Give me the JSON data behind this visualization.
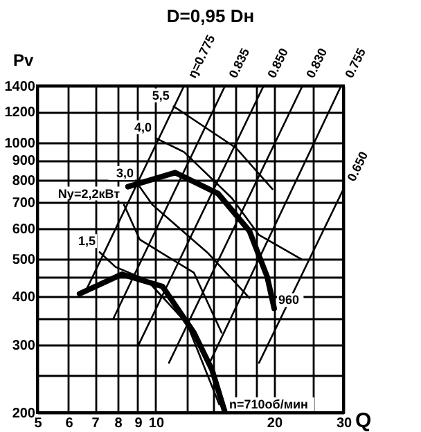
{
  "chart_data": {
    "type": "line",
    "title": "D=0,95 Dн",
    "xlabel": "Q",
    "ylabel": "Pv",
    "log": "xy",
    "grid": true,
    "xlim": [
      5,
      30
    ],
    "ylim": [
      200,
      1400
    ],
    "xticks": [
      5,
      6,
      7,
      8,
      9,
      10,
      {
        "value": 12,
        "label": null
      },
      {
        "value": 14,
        "label": null
      },
      {
        "value": 16,
        "label": null
      },
      {
        "value": 18,
        "label": null
      },
      20,
      {
        "value": 25,
        "label": null
      },
      30
    ],
    "yticks": [
      200,
      {
        "value": 250,
        "label": null
      },
      300,
      {
        "value": 350,
        "label": null
      },
      400,
      {
        "value": 450,
        "label": null
      },
      500,
      600,
      700,
      800,
      900,
      1000,
      1200,
      1400
    ],
    "series": [
      {
        "name": "960",
        "color": "#000000",
        "x": [
          20.0,
          19.2,
          17.3,
          14.4,
          11.2,
          8.5
        ],
        "values": [
          372,
          449,
          590,
          737,
          835,
          768
        ]
      },
      {
        "name": "n=710об/мин",
        "color": "#000000",
        "x": [
          15.0,
          13.9,
          12.5,
          10.4,
          8.2,
          6.4
        ],
        "values": [
          200,
          258,
          322,
          424,
          456,
          406
        ]
      },
      {
        "name": "5,5",
        "color": "#000000",
        "x": [
          11.1,
          16.0,
          19.8
        ],
        "values": [
          1239,
          967,
          757
        ]
      },
      {
        "name": "4,0",
        "color": "#000000",
        "x": [
          10.0,
          11.8,
          15.6,
          18.3,
          23.4
        ],
        "values": [
          1025,
          944,
          718,
          576,
          499
        ]
      },
      {
        "name": "3,0",
        "color": "#000000",
        "x": [
          9.0,
          9.8,
          13.6,
          17.3
        ],
        "values": [
          780,
          690,
          516,
          396
        ]
      },
      {
        "name": "Ny=2,2кВт",
        "color": "#000000",
        "x": [
          8.3,
          9.1,
          12.5,
          14.7
        ],
        "values": [
          690,
          561,
          460,
          322
        ]
      },
      {
        "name": "1,5",
        "color": "#000000",
        "x": [
          7.2,
          7.9,
          9.5,
          12,
          14.5
        ],
        "values": [
          520,
          476,
          440,
          340,
          210
        ]
      },
      {
        "name": "ŋ=0.775",
        "color": "#000000",
        "x": [
          11.8,
          6.64
        ],
        "values": [
          1400,
          413
        ]
      },
      {
        "name": "0.835",
        "color": "#000000",
        "x": [
          15.0,
          7.8
        ],
        "values": [
          1400,
          350
        ]
      },
      {
        "name": "0.850",
        "color": "#000000",
        "x": [
          18.8,
          9.05
        ],
        "values": [
          1400,
          300
        ]
      },
      {
        "name": "0.830",
        "color": "#000000",
        "x": [
          23.6,
          10.8
        ],
        "values": [
          1400,
          269
        ]
      },
      {
        "name": "0.755",
        "color": "#000000",
        "x": [
          29.6,
          13.7
        ],
        "values": [
          1400,
          269
        ]
      },
      {
        "name": "0.650",
        "color": "#000000",
        "x": [
          30,
          18.3
        ],
        "values": [
          757,
          269
        ]
      }
    ]
  }
}
